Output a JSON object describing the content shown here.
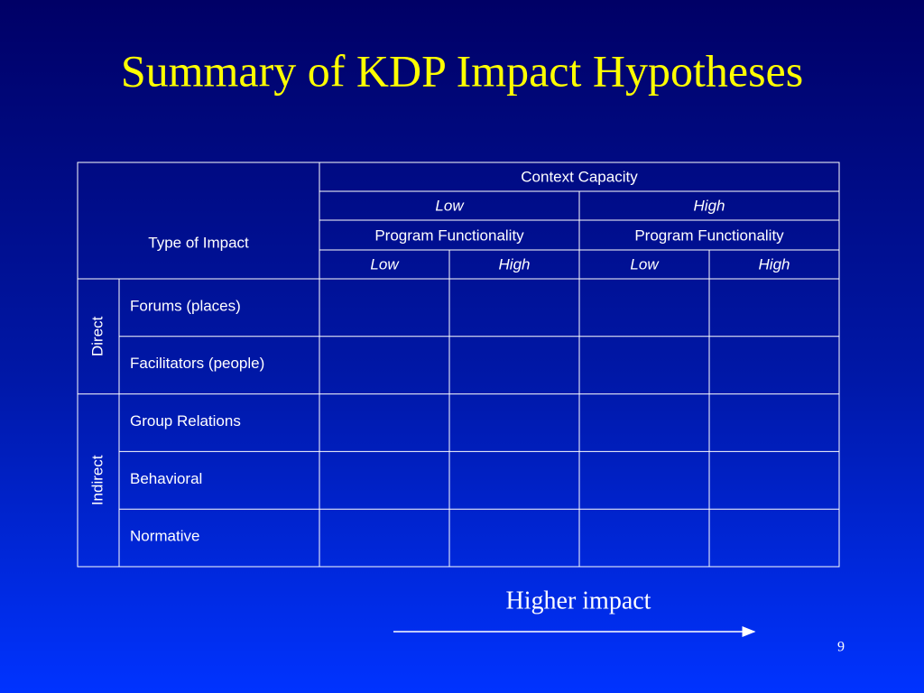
{
  "title": "Summary of KDP Impact Hypotheses",
  "table": {
    "corner": "Type of Impact",
    "context": "Context Capacity",
    "capacity": [
      "Low",
      "High"
    ],
    "functionality": [
      "Program Functionality",
      "Program Functionality"
    ],
    "levels": [
      "Low",
      "High",
      "Low",
      "High"
    ],
    "groups": [
      {
        "label": "Direct",
        "rows": [
          "Forums (places)",
          "Facilitators (people)"
        ]
      },
      {
        "label": "Indirect",
        "rows": [
          "Group Relations",
          "Behavioral",
          "Normative"
        ]
      }
    ]
  },
  "annotation": "Higher impact",
  "page_number": "9"
}
